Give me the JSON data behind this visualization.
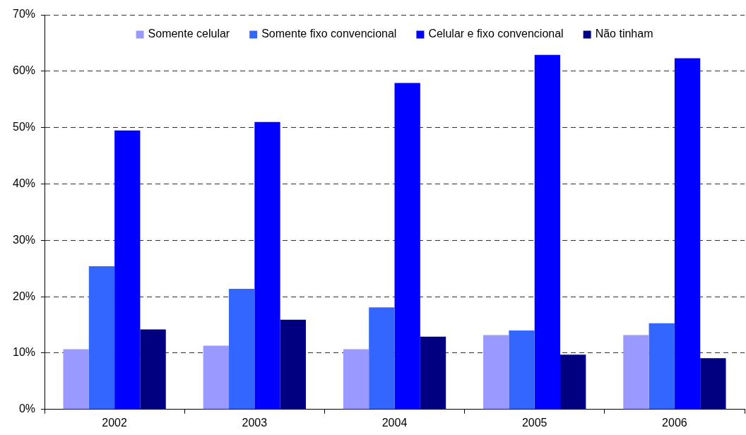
{
  "chart_data": {
    "type": "bar",
    "categories": [
      "2002",
      "2003",
      "2004",
      "2005",
      "2006"
    ],
    "series": [
      {
        "name": "Somente celular",
        "color": "#9999ff",
        "values": [
          10.7,
          11.3,
          10.7,
          13.2,
          13.2
        ]
      },
      {
        "name": "Somente fixo convencional",
        "color": "#3366ff",
        "values": [
          25.4,
          21.4,
          18.1,
          14.0,
          15.3
        ]
      },
      {
        "name": "Celular e fixo convencional",
        "color": "#0000ff",
        "values": [
          49.5,
          51.0,
          57.9,
          62.9,
          62.3
        ]
      },
      {
        "name": "Não tinham",
        "color": "#000080",
        "values": [
          14.2,
          15.9,
          12.9,
          9.7,
          9.1
        ]
      }
    ],
    "ylim": [
      0,
      70
    ],
    "yticks": [
      {
        "value": 0,
        "label": "0%"
      },
      {
        "value": 10,
        "label": "10%"
      },
      {
        "value": 20,
        "label": "20%"
      },
      {
        "value": 30,
        "label": "30%"
      },
      {
        "value": 40,
        "label": "40%"
      },
      {
        "value": 50,
        "label": "50%"
      },
      {
        "value": 60,
        "label": "60%"
      },
      {
        "value": 70,
        "label": "70%"
      }
    ],
    "grid": "y",
    "legend": "top"
  }
}
